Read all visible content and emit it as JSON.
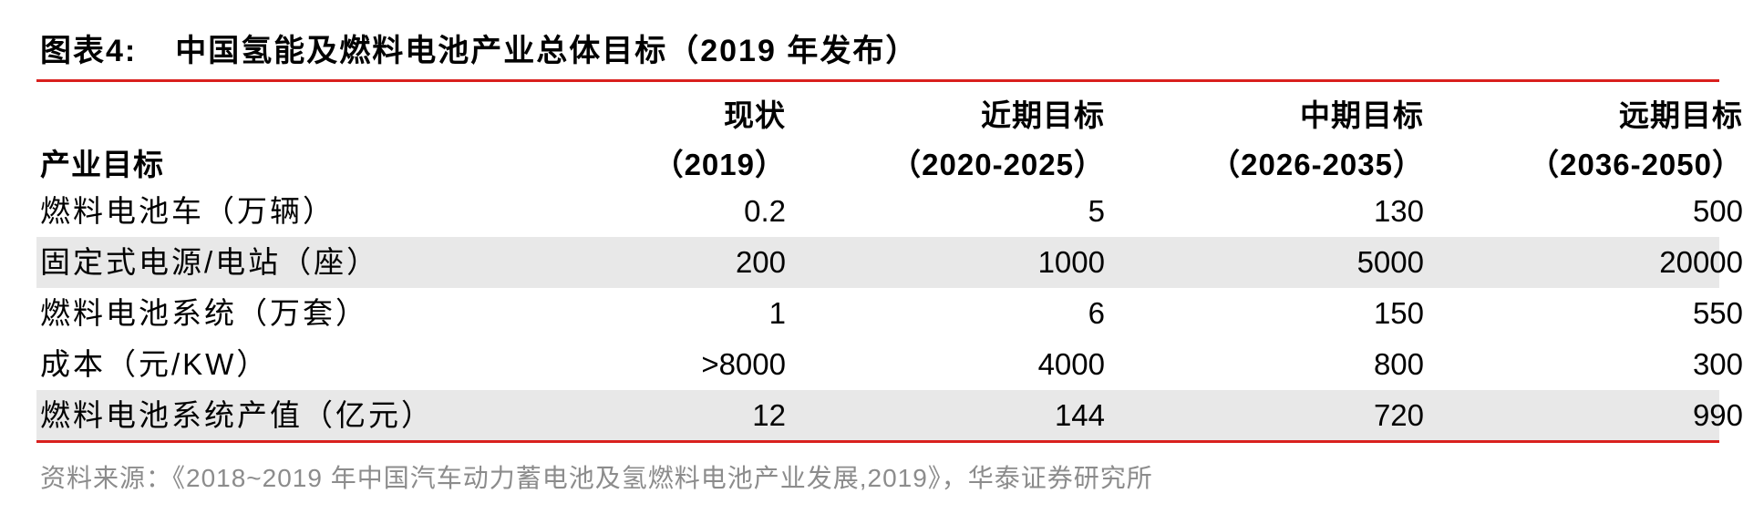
{
  "title": {
    "number": "图表4:",
    "text": "中国氢能及燃料电池产业总体目标（2019 年发布）"
  },
  "table": {
    "headers": [
      {
        "line1": "",
        "line2": "产业目标"
      },
      {
        "line1": "现状",
        "line2": "（2019）"
      },
      {
        "line1": "近期目标",
        "line2": "（2020-2025）"
      },
      {
        "line1": "中期目标",
        "line2": "（2026-2035）"
      },
      {
        "line1": "远期目标",
        "line2": "（2036-2050）"
      }
    ],
    "rows": [
      {
        "label": "燃料电池车（万辆）",
        "values": [
          "0.2",
          "5",
          "130",
          "500"
        ]
      },
      {
        "label": "固定式电源/电站（座）",
        "values": [
          "200",
          "1000",
          "5000",
          "20000"
        ]
      },
      {
        "label": "燃料电池系统（万套）",
        "values": [
          "1",
          "6",
          "150",
          "550"
        ]
      },
      {
        "label": "成本（元/KW）",
        "values": [
          ">8000",
          "4000",
          "800",
          "300"
        ]
      },
      {
        "label": "燃料电池系统产值（亿元）",
        "values": [
          "12",
          "144",
          "720",
          "990"
        ]
      }
    ]
  },
  "source": "资料来源：《2018~2019 年中国汽车动力蓄电池及氢燃料电池产业发展,2019》，华泰证券研究所",
  "colors": {
    "accent_rule": "#d9201e",
    "row_shade": "#e8e8e8",
    "source_text": "#8c8c8c"
  }
}
